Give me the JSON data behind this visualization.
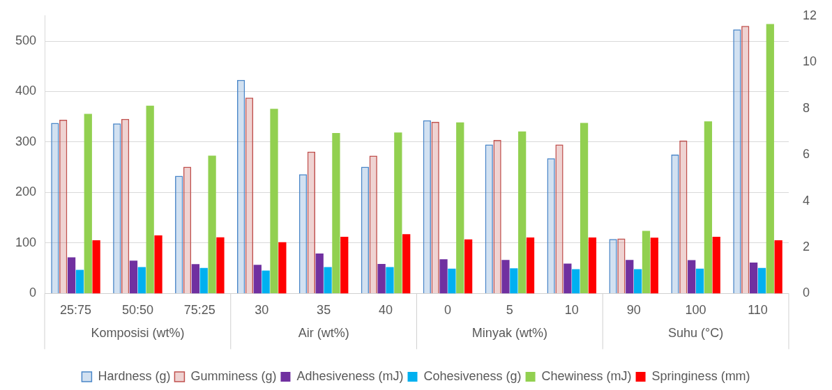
{
  "chart_data": {
    "type": "bar",
    "categories": [
      "25:75",
      "50:50",
      "75:25",
      "30",
      "35",
      "40",
      "0",
      "5",
      "10",
      "90",
      "100",
      "110"
    ],
    "annotations": [
      "Komposisi (wt%)",
      "Air (wt%)",
      "Minyak (wt%)",
      "Suhu (°C)"
    ],
    "series": [
      {
        "name": "Hardness (g)",
        "color": "#4a86c8",
        "values": [
          338,
          337,
          233,
          423,
          236,
          251,
          343,
          295,
          268,
          108,
          275,
          523
        ]
      },
      {
        "name": "Gumminess (g)",
        "color": "#c0504d",
        "values": [
          344,
          346,
          251,
          388,
          281,
          273,
          340,
          304,
          295,
          109,
          303,
          530
        ]
      },
      {
        "name": "Adhesiveness (mJ)",
        "color": "#7030a0",
        "axis": "y2",
        "values": [
          1.56,
          1.42,
          1.27,
          1.24,
          1.73,
          1.28,
          1.48,
          1.45,
          1.29,
          1.45,
          1.44,
          1.34
        ]
      },
      {
        "name": "Cohesiveness (g)",
        "color": "#00b0f0",
        "axis": "y2",
        "values": [
          1.02,
          1.14,
          1.1,
          0.99,
          1.14,
          1.14,
          1.07,
          1.09,
          1.05,
          1.05,
          1.07,
          1.1
        ]
      },
      {
        "name": "Chewiness (mJ)",
        "color": "#92d050",
        "values": [
          356,
          372,
          273,
          366,
          318,
          319,
          339,
          321,
          338,
          124,
          341,
          534
        ]
      },
      {
        "name": "Springiness (mm)",
        "color": "#ff0000",
        "axis": "y2",
        "values": [
          2.3,
          2.51,
          2.43,
          2.22,
          2.45,
          2.56,
          2.34,
          2.42,
          2.42,
          2.41,
          2.45,
          2.3
        ]
      }
    ],
    "ylim": [
      0,
      550
    ],
    "yticks": [
      0,
      100,
      200,
      300,
      400,
      500
    ],
    "y2lim": [
      0,
      12
    ],
    "y2ticks": [
      0,
      2,
      4,
      6,
      8,
      10,
      12
    ],
    "grid": "y",
    "legend": "bottom"
  }
}
